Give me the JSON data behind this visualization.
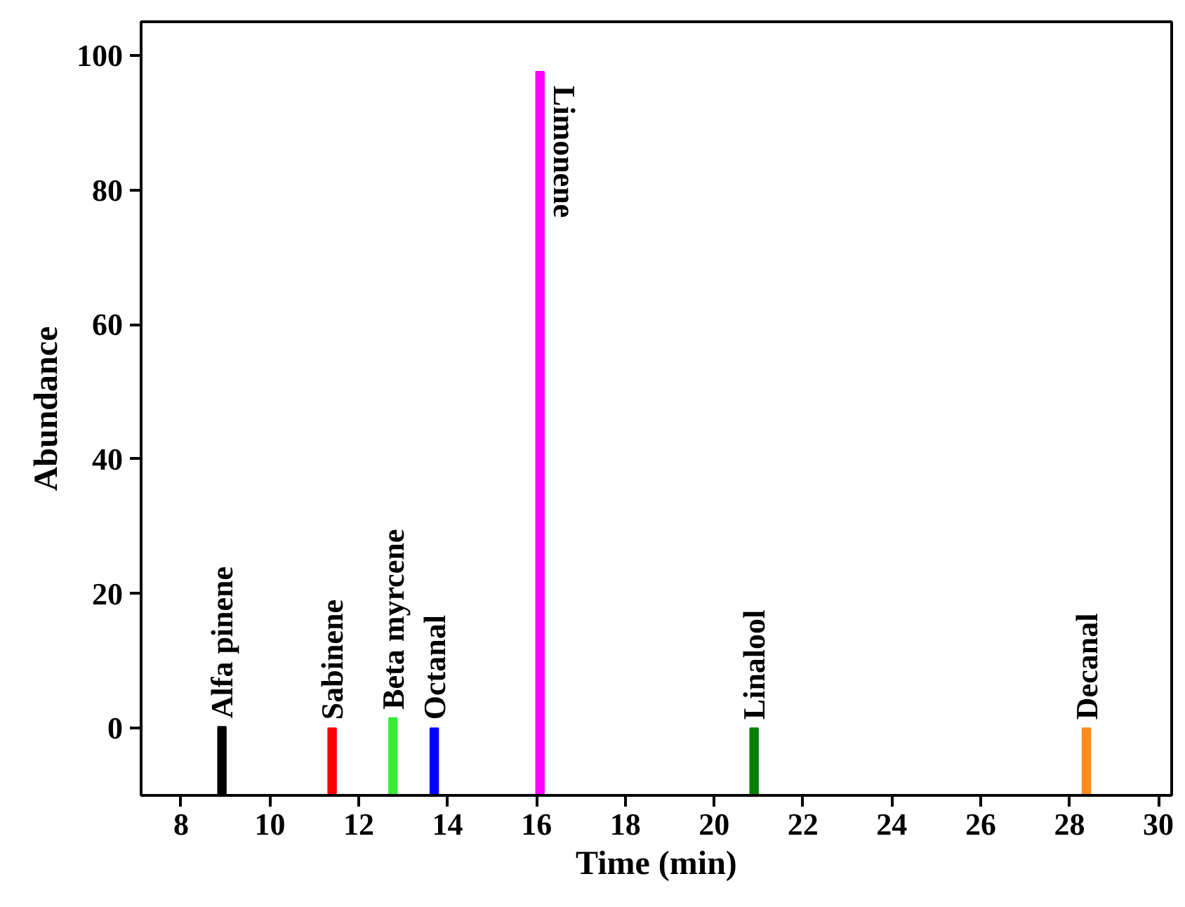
{
  "chart_data": {
    "type": "bar",
    "xlabel": "Time (min)",
    "ylabel": "Abundance",
    "x": [
      8.92,
      11.4,
      12.77,
      13.7,
      16.08,
      20.9,
      28.38
    ],
    "base": [
      -10,
      -10,
      -10,
      -10,
      -10,
      -10,
      -10
    ],
    "values": [
      10.2,
      10,
      11.5,
      10,
      107.6,
      10,
      10
    ],
    "colors": [
      "#000000",
      "#ff0000",
      "#33ee33",
      "#0000ff",
      "#ff00ff",
      "#008000",
      "#ff8c1a"
    ],
    "xlim": [
      7.1,
      30.3
    ],
    "ylim": [
      -10,
      105
    ],
    "xticks": [
      8,
      10,
      12,
      14,
      16,
      18,
      20,
      22,
      24,
      26,
      28,
      30
    ],
    "yticks": [
      0,
      20,
      40,
      60,
      80,
      100
    ],
    "grid": false,
    "annotations": [
      {
        "text": "Alfa pinene",
        "x": 8.92,
        "y": 0.2
      },
      {
        "text": "Sabinene",
        "x": 11.4,
        "y": 0
      },
      {
        "text": "Beta myrcene",
        "x": 12.77,
        "y": 1.5
      },
      {
        "text": "Octanal",
        "x": 13.7,
        "y": 0
      },
      {
        "text": "Limonene",
        "x": 16.08,
        "y": 97.6
      },
      {
        "text": "Linalool",
        "x": 20.9,
        "y": 0
      },
      {
        "text": "Decanal",
        "x": 28.38,
        "y": 0
      }
    ]
  }
}
